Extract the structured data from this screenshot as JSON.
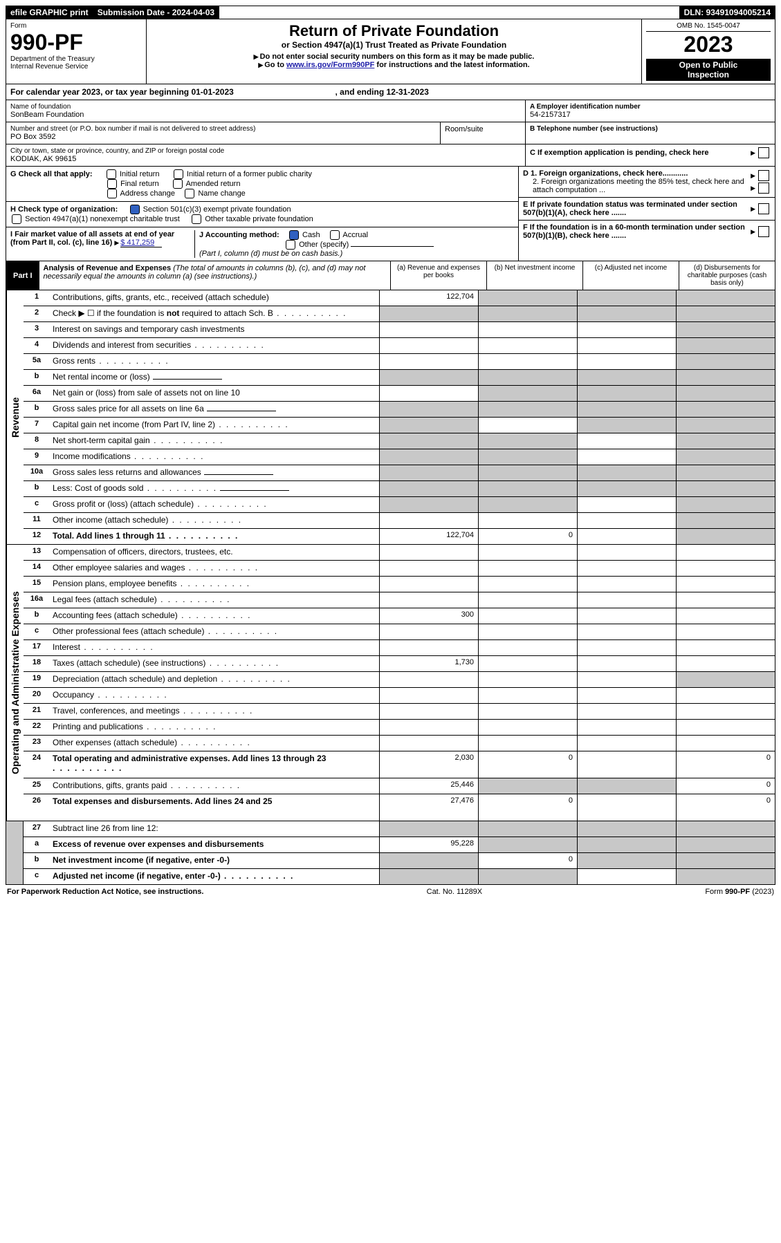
{
  "topbar": {
    "efile": "efile GRAPHIC print",
    "submission_label": "Submission Date - 2024-04-03",
    "dln": "DLN: 93491094005214"
  },
  "header": {
    "form_word": "Form",
    "form_num": "990-PF",
    "dept1": "Department of the Treasury",
    "dept2": "Internal Revenue Service",
    "title": "Return of Private Foundation",
    "subtitle": "or Section 4947(a)(1) Trust Treated as Private Foundation",
    "note1": "Do not enter social security numbers on this form as it may be made public.",
    "note2_a": "Go to ",
    "note2_link": "www.irs.gov/Form990PF",
    "note2_b": " for instructions and the latest information.",
    "omb": "OMB No. 1545-0047",
    "year": "2023",
    "inspect1": "Open to Public",
    "inspect2": "Inspection"
  },
  "cal_year": {
    "a": "For calendar year 2023, or tax year beginning 01-01-2023",
    "b": ", and ending 12-31-2023"
  },
  "info": {
    "name_label": "Name of foundation",
    "name": "SonBeam Foundation",
    "addr_label": "Number and street (or P.O. box number if mail is not delivered to street address)",
    "addr": "PO Box 3592",
    "room_label": "Room/suite",
    "city_label": "City or town, state or province, country, and ZIP or foreign postal code",
    "city": "KODIAK, AK  99615",
    "a_label": "A Employer identification number",
    "a_val": "54-2157317",
    "b_label": "B Telephone number (see instructions)",
    "c_label": "C If exemption application is pending, check here",
    "d1": "D 1. Foreign organizations, check here............",
    "d2": "2. Foreign organizations meeting the 85% test, check here and attach computation ...",
    "e_label": "E  If private foundation status was terminated under section 507(b)(1)(A), check here .......",
    "f_label": "F  If the foundation is in a 60-month termination under section 507(b)(1)(B), check here ......."
  },
  "g": {
    "label": "G Check all that apply:",
    "opts": [
      "Initial return",
      "Final return",
      "Address change",
      "Initial return of a former public charity",
      "Amended return",
      "Name change"
    ]
  },
  "h": {
    "label": "H Check type of organization:",
    "o1": "Section 501(c)(3) exempt private foundation",
    "o2": "Section 4947(a)(1) nonexempt charitable trust",
    "o3": "Other taxable private foundation"
  },
  "i": {
    "label": "I Fair market value of all assets at end of year (from Part II, col. (c), line 16)",
    "val": "$  417,259"
  },
  "j": {
    "label": "J Accounting method:",
    "cash": "Cash",
    "accrual": "Accrual",
    "other": "Other (specify)",
    "note": "(Part I, column (d) must be on cash basis.)"
  },
  "part1": {
    "label": "Part I",
    "title": "Analysis of Revenue and Expenses",
    "desc": " (The total of amounts in columns (b), (c), and (d) may not necessarily equal the amounts in column (a) (see instructions).)",
    "col_a": "(a)   Revenue and expenses per books",
    "col_b": "(b)   Net investment income",
    "col_c": "(c)   Adjusted net income",
    "col_d": "(d)   Disbursements for charitable purposes (cash basis only)"
  },
  "section_labels": {
    "revenue": "Revenue",
    "expenses": "Operating and Administrative Expenses"
  },
  "rows_rev": [
    {
      "n": "1",
      "d": "Contributions, gifts, grants, etc., received (attach schedule)",
      "a": "122,704",
      "b": "_s",
      "c": "_s",
      "da": "_s"
    },
    {
      "n": "2",
      "d": "Check ▶ ☐ if the foundation is not required to attach Sch. B",
      "dots": true,
      "a": "_s",
      "b": "_s",
      "c": "_s",
      "da": "_s",
      "bold_not": true
    },
    {
      "n": "3",
      "d": "Interest on savings and temporary cash investments",
      "a": "",
      "b": "",
      "c": "",
      "da": "_s"
    },
    {
      "n": "4",
      "d": "Dividends and interest from securities",
      "dots": true,
      "a": "",
      "b": "",
      "c": "",
      "da": "_s"
    },
    {
      "n": "5a",
      "d": "Gross rents",
      "dots": true,
      "a": "",
      "b": "",
      "c": "",
      "da": "_s"
    },
    {
      "n": "b",
      "d": "Net rental income or (loss)",
      "short": true,
      "a": "_s",
      "b": "_s",
      "c": "_s",
      "da": "_s"
    },
    {
      "n": "6a",
      "d": "Net gain or (loss) from sale of assets not on line 10",
      "a": "",
      "b": "_s",
      "c": "_s",
      "da": "_s"
    },
    {
      "n": "b",
      "d": "Gross sales price for all assets on line 6a",
      "short": true,
      "a": "_s",
      "b": "_s",
      "c": "_s",
      "da": "_s"
    },
    {
      "n": "7",
      "d": "Capital gain net income (from Part IV, line 2)",
      "dots": true,
      "a": "_s",
      "b": "",
      "c": "_s",
      "da": "_s"
    },
    {
      "n": "8",
      "d": "Net short-term capital gain",
      "dots": true,
      "a": "_s",
      "b": "_s",
      "c": "",
      "da": "_s"
    },
    {
      "n": "9",
      "d": "Income modifications",
      "dots": true,
      "a": "_s",
      "b": "_s",
      "c": "",
      "da": "_s"
    },
    {
      "n": "10a",
      "d": "Gross sales less returns and allowances",
      "short": true,
      "a": "_s",
      "b": "_s",
      "c": "_s",
      "da": "_s"
    },
    {
      "n": "b",
      "d": "Less: Cost of goods sold",
      "dots": true,
      "short": true,
      "a": "_s",
      "b": "_s",
      "c": "_s",
      "da": "_s"
    },
    {
      "n": "c",
      "d": "Gross profit or (loss) (attach schedule)",
      "dots": true,
      "a": "_s",
      "b": "_s",
      "c": "",
      "da": "_s"
    },
    {
      "n": "11",
      "d": "Other income (attach schedule)",
      "dots": true,
      "a": "",
      "b": "",
      "c": "",
      "da": "_s"
    },
    {
      "n": "12",
      "d": "Total. Add lines 1 through 11",
      "dots": true,
      "bold": true,
      "a": "122,704",
      "b": "0",
      "c": "",
      "da": "_s"
    }
  ],
  "rows_exp": [
    {
      "n": "13",
      "d": "Compensation of officers, directors, trustees, etc.",
      "a": "",
      "b": "",
      "c": "",
      "da": ""
    },
    {
      "n": "14",
      "d": "Other employee salaries and wages",
      "dots": true,
      "a": "",
      "b": "",
      "c": "",
      "da": ""
    },
    {
      "n": "15",
      "d": "Pension plans, employee benefits",
      "dots": true,
      "a": "",
      "b": "",
      "c": "",
      "da": ""
    },
    {
      "n": "16a",
      "d": "Legal fees (attach schedule)",
      "dots": true,
      "a": "",
      "b": "",
      "c": "",
      "da": ""
    },
    {
      "n": "b",
      "d": "Accounting fees (attach schedule)",
      "dots": true,
      "a": "300",
      "b": "",
      "c": "",
      "da": ""
    },
    {
      "n": "c",
      "d": "Other professional fees (attach schedule)",
      "dots": true,
      "a": "",
      "b": "",
      "c": "",
      "da": ""
    },
    {
      "n": "17",
      "d": "Interest",
      "dots": true,
      "a": "",
      "b": "",
      "c": "",
      "da": ""
    },
    {
      "n": "18",
      "d": "Taxes (attach schedule) (see instructions)",
      "dots": true,
      "a": "1,730",
      "b": "",
      "c": "",
      "da": ""
    },
    {
      "n": "19",
      "d": "Depreciation (attach schedule) and depletion",
      "dots": true,
      "a": "",
      "b": "",
      "c": "",
      "da": "_s"
    },
    {
      "n": "20",
      "d": "Occupancy",
      "dots": true,
      "a": "",
      "b": "",
      "c": "",
      "da": ""
    },
    {
      "n": "21",
      "d": "Travel, conferences, and meetings",
      "dots": true,
      "a": "",
      "b": "",
      "c": "",
      "da": ""
    },
    {
      "n": "22",
      "d": "Printing and publications",
      "dots": true,
      "a": "",
      "b": "",
      "c": "",
      "da": ""
    },
    {
      "n": "23",
      "d": "Other expenses (attach schedule)",
      "dots": true,
      "a": "",
      "b": "",
      "c": "",
      "da": ""
    },
    {
      "n": "24",
      "d": "Total operating and administrative expenses. Add lines 13 through 23",
      "dots": true,
      "bold": true,
      "a": "2,030",
      "b": "0",
      "c": "",
      "da": "0",
      "tall": true
    },
    {
      "n": "25",
      "d": "Contributions, gifts, grants paid",
      "dots": true,
      "a": "25,446",
      "b": "_s",
      "c": "_s",
      "da": "0"
    },
    {
      "n": "26",
      "d": "Total expenses and disbursements. Add lines 24 and 25",
      "bold": true,
      "a": "27,476",
      "b": "0",
      "c": "",
      "da": "0",
      "tall": true
    }
  ],
  "rows_bot": [
    {
      "n": "27",
      "d": "Subtract line 26 from line 12:",
      "a": "_s",
      "b": "_s",
      "c": "_s",
      "da": "_s"
    },
    {
      "n": "a",
      "d": "Excess of revenue over expenses and disbursements",
      "bold": true,
      "a": "95,228",
      "b": "_s",
      "c": "_s",
      "da": "_s"
    },
    {
      "n": "b",
      "d": "Net investment income (if negative, enter -0-)",
      "bold": true,
      "a": "_s",
      "b": "0",
      "c": "_s",
      "da": "_s"
    },
    {
      "n": "c",
      "d": "Adjusted net income (if negative, enter -0-)",
      "dots": true,
      "bold": true,
      "a": "_s",
      "b": "_s",
      "c": "",
      "da": "_s"
    }
  ],
  "footer": {
    "left": "For Paperwork Reduction Act Notice, see instructions.",
    "mid": "Cat. No. 11289X",
    "right": "Form 990-PF (2023)"
  }
}
